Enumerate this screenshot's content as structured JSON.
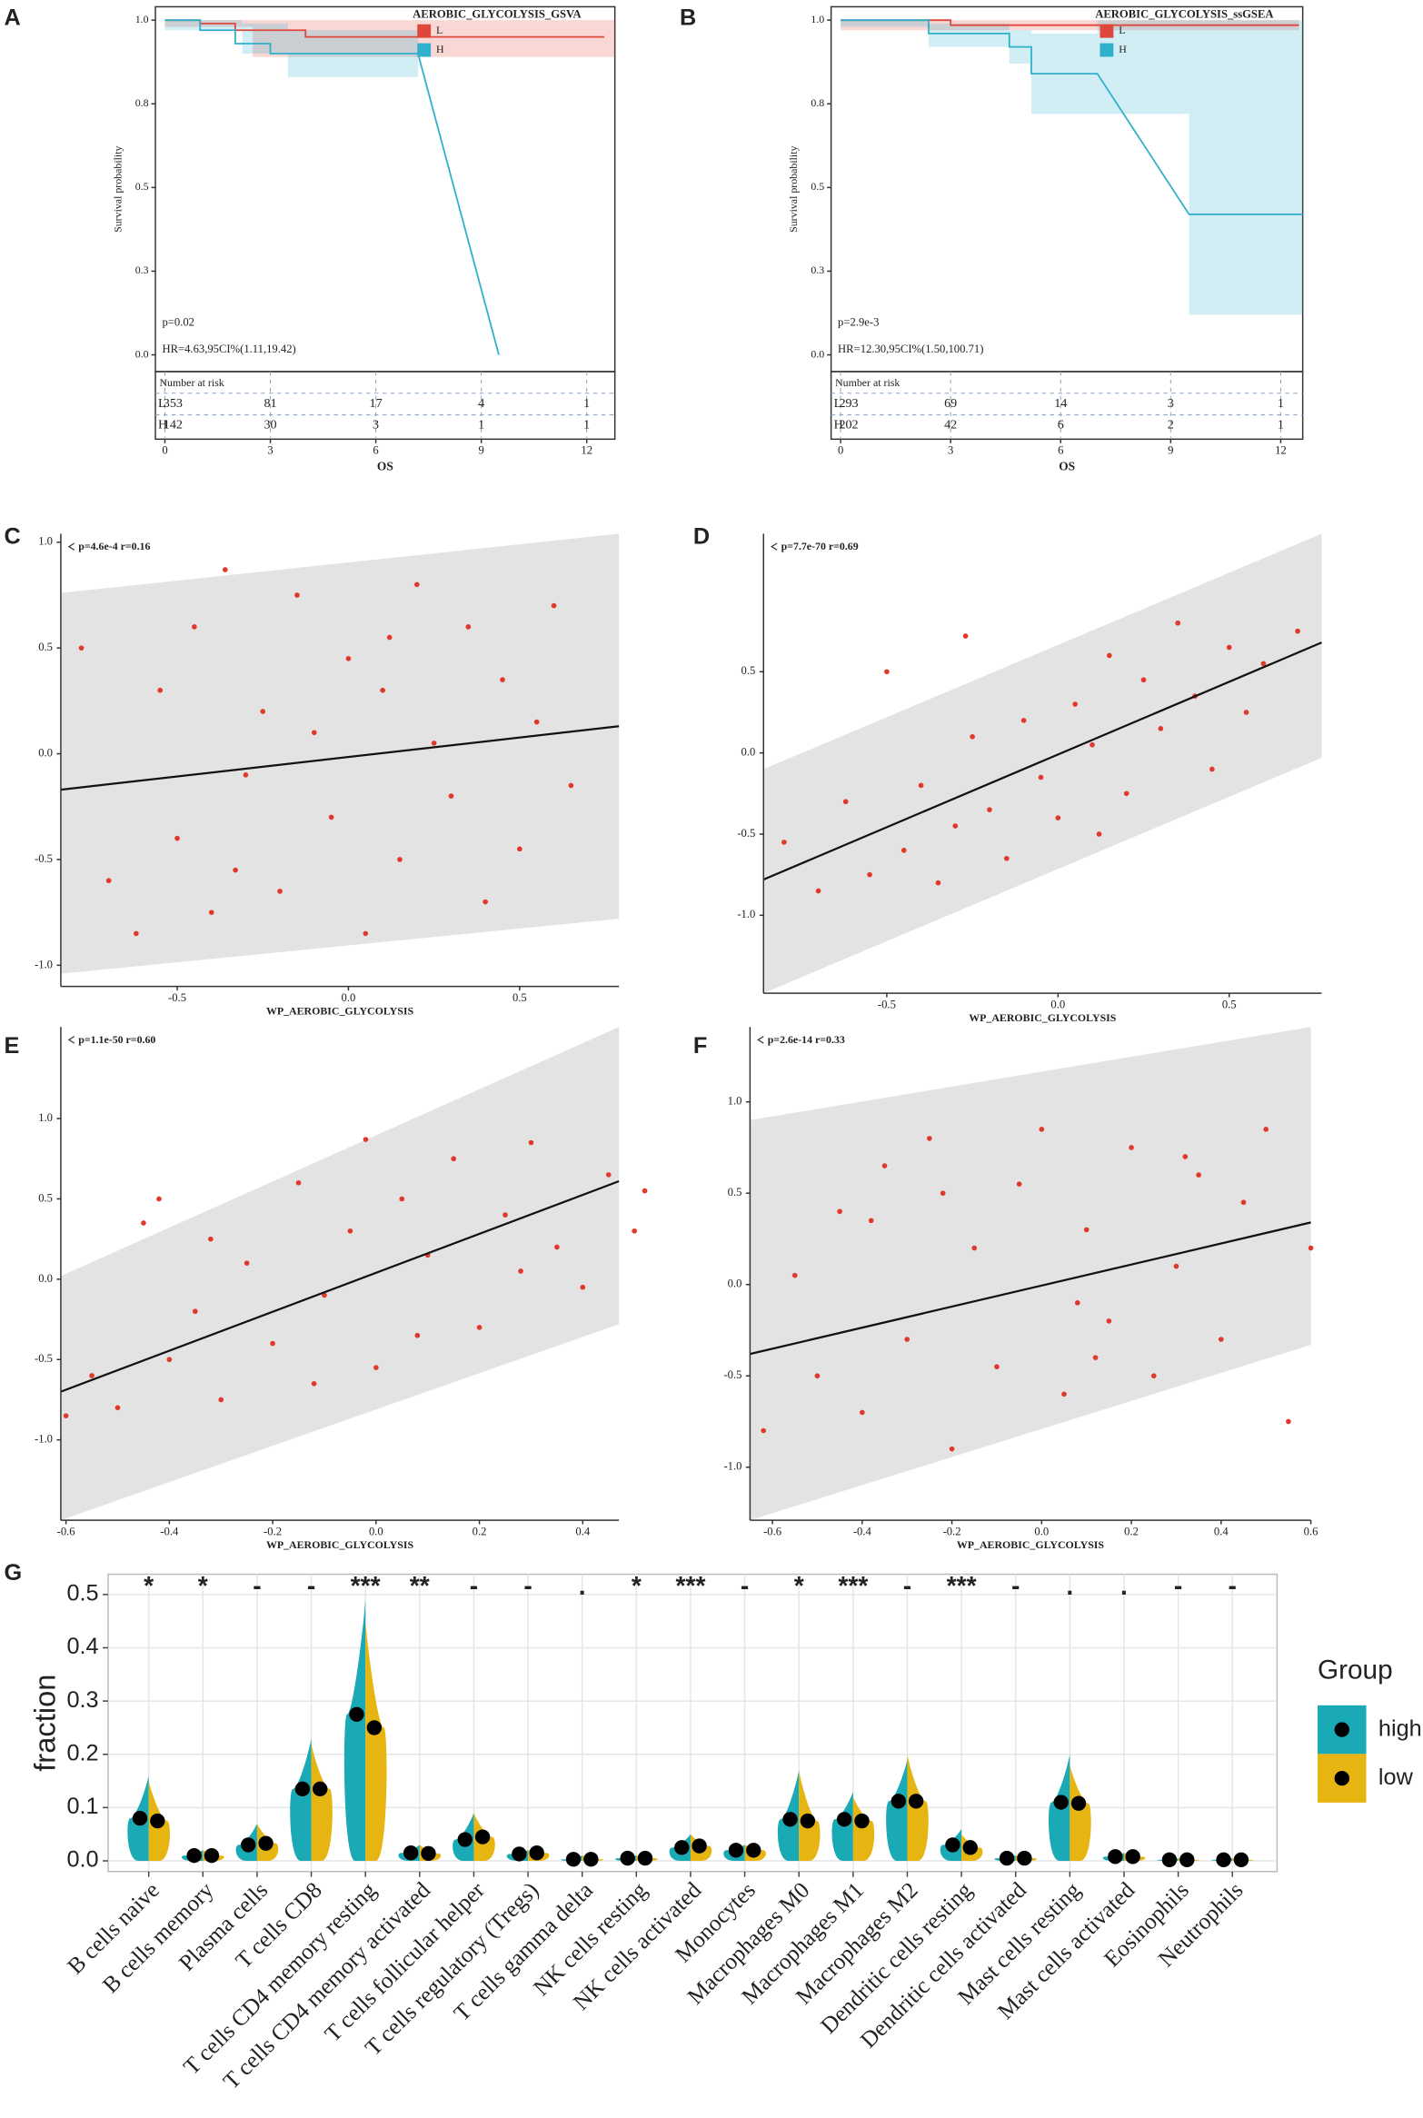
{
  "chart_data": [
    {
      "type": "survival",
      "label": "A",
      "title": "AEROBIC_GLYCOLYSIS_GSVA",
      "x_label": "OS",
      "y_label": "Survival probability",
      "annotations": [
        "p=0.02",
        "HR=4.63,95CI%(1.11,19.42)"
      ],
      "xlim": [
        -0.27,
        12.8
      ],
      "ylim": [
        -0.05,
        1.04
      ],
      "xticks": [
        0,
        3,
        6,
        9,
        12
      ],
      "yticks": [
        {
          "value": 0,
          "label": "0.0"
        },
        {
          "value": 0.25,
          "label": "0.3"
        },
        0.5,
        {
          "value": 0.75,
          "label": "0.8"
        },
        {
          "value": 1,
          "label": "1.0"
        }
      ],
      "risk_title": "Number at risk",
      "series": [
        {
          "name": "L",
          "color": "#e0473b",
          "x": [
            0,
            1,
            1,
            2,
            2,
            4,
            4,
            12.5
          ],
          "values": [
            1,
            1,
            0.99,
            0.99,
            0.97,
            0.97,
            0.95,
            0.95
          ],
          "ci_x": [
            0,
            2.5,
            12.8
          ],
          "ci_lower": [
            0.98,
            0.89
          ],
          "ci_upper": [
            1,
            1
          ],
          "at_risk": [
            353,
            81,
            17,
            4,
            1
          ]
        },
        {
          "name": "H",
          "color": "#2fb0cc",
          "x": [
            0,
            1,
            1,
            2,
            2,
            3,
            3,
            7.2,
            9.5
          ],
          "values": [
            1,
            1,
            0.97,
            0.97,
            0.93,
            0.93,
            0.9,
            0.9,
            0
          ],
          "ci_x": [
            0,
            2.2,
            3.5,
            7.2
          ],
          "ci_lower": [
            0.97,
            0.9,
            0.83
          ],
          "ci_upper": [
            1,
            0.99,
            0.97
          ],
          "at_risk": [
            142,
            30,
            3,
            1,
            1
          ]
        }
      ]
    },
    {
      "type": "survival",
      "label": "B",
      "title": "AEROBIC_GLYCOLYSIS_ssGSEA",
      "x_label": "OS",
      "y_label": "Survival probability",
      "annotations": [
        "p=2.9e-3",
        "HR=12.30,95CI%(1.50,100.71)"
      ],
      "xlim": [
        -0.26,
        12.6
      ],
      "ylim": [
        -0.05,
        1.04
      ],
      "xticks": [
        0,
        3,
        6,
        9,
        12
      ],
      "yticks": [
        {
          "value": 0,
          "label": "0.0"
        },
        {
          "value": 0.25,
          "label": "0.3"
        },
        0.5,
        {
          "value": 0.75,
          "label": "0.8"
        },
        {
          "value": 1,
          "label": "1.0"
        }
      ],
      "risk_title": "Number at risk",
      "series": [
        {
          "name": "L",
          "color": "#e0473b",
          "x": [
            0,
            3,
            3,
            12.5
          ],
          "values": [
            1,
            1,
            0.985,
            0.985
          ],
          "ci_x": [
            0,
            12.5
          ],
          "ci_lower": [
            0.97
          ],
          "ci_upper": [
            1
          ],
          "at_risk": [
            293,
            69,
            14,
            3,
            1
          ]
        },
        {
          "name": "H",
          "color": "#2fb0cc",
          "x": [
            0,
            2.4,
            2.4,
            4.6,
            4.6,
            5.2,
            5.2,
            7,
            9.5,
            12.6
          ],
          "values": [
            1,
            1,
            0.96,
            0.96,
            0.92,
            0.92,
            0.84,
            0.84,
            0.42,
            0.42
          ],
          "ci_x": [
            0,
            2.4,
            4.6,
            5.2,
            7,
            9.5,
            12.6
          ],
          "ci_lower": [
            0.98,
            0.92,
            0.87,
            0.72,
            0.72,
            0.12
          ],
          "ci_upper": [
            1,
            0.99,
            0.97,
            0.96,
            1,
            1
          ],
          "at_risk": [
            202,
            42,
            6,
            2,
            1
          ]
        }
      ]
    },
    {
      "type": "scatter",
      "label": "C",
      "annotation": "p=4.6e-4 r=0.16",
      "x_label": "WP_AEROBIC_GLYCOLYSIS",
      "color": "#e0392b",
      "xlim": [
        -0.84,
        0.79
      ],
      "ylim": [
        -1.1,
        1.04
      ],
      "xticks": [
        -0.5,
        {
          "value": 0,
          "label": "0.0"
        },
        0.5
      ],
      "yticks": [
        {
          "value": -1,
          "label": "-1.0"
        },
        -0.5,
        {
          "value": 0,
          "label": "0.0"
        },
        0.5,
        {
          "value": 1,
          "label": "1.0"
        }
      ],
      "fit": {
        "x": [
          -0.84,
          0.79
        ],
        "values": [
          -0.17,
          0.13
        ],
        "band_lower": [
          -1.04,
          -0.78
        ],
        "band_upper": [
          0.76,
          1.04
        ]
      },
      "x": [
        -0.78,
        -0.7,
        -0.62,
        -0.55,
        -0.5,
        -0.45,
        -0.4,
        -0.36,
        -0.3,
        -0.25,
        -0.2,
        -0.15,
        -0.1,
        -0.05,
        0,
        0.05,
        0.1,
        0.15,
        0.2,
        0.25,
        0.3,
        0.35,
        0.4,
        0.45,
        0.5,
        0.55,
        0.6,
        0.65,
        -0.33,
        0.12
      ],
      "values": [
        0.5,
        -0.6,
        -0.85,
        0.3,
        -0.4,
        0.6,
        -0.75,
        0.87,
        -0.1,
        0.2,
        -0.65,
        0.75,
        0.1,
        -0.3,
        0.45,
        -0.85,
        0.3,
        -0.5,
        0.8,
        0.05,
        -0.2,
        0.6,
        -0.7,
        0.35,
        -0.45,
        0.15,
        0.7,
        -0.15,
        -0.55,
        0.55
      ]
    },
    {
      "type": "scatter",
      "label": "D",
      "annotation": "p=7.7e-70 r=0.69",
      "x_label": "WP_AEROBIC_GLYCOLYSIS",
      "color": "#e0392b",
      "xlim": [
        -0.86,
        0.77
      ],
      "ylim": [
        -1.48,
        1.35
      ],
      "xticks": [
        -0.5,
        {
          "value": 0,
          "label": "0.0"
        },
        0.5
      ],
      "yticks": [
        {
          "value": -1,
          "label": "-1.0"
        },
        -0.5,
        {
          "value": 0,
          "label": "0.0"
        },
        0.5
      ],
      "fit": {
        "x": [
          -0.86,
          0.77
        ],
        "values": [
          -0.78,
          0.68
        ],
        "band_lower": [
          -1.48,
          -0.03
        ],
        "band_upper": [
          -0.1,
          1.35
        ]
      },
      "x": [
        -0.8,
        -0.7,
        -0.62,
        -0.55,
        -0.5,
        -0.45,
        -0.4,
        -0.35,
        -0.3,
        -0.25,
        -0.2,
        -0.15,
        -0.1,
        -0.05,
        0,
        0.05,
        0.1,
        0.15,
        0.2,
        0.25,
        0.3,
        0.35,
        0.4,
        0.45,
        0.5,
        0.55,
        0.6,
        0.7,
        -0.27,
        0.12
      ],
      "values": [
        -0.55,
        -0.85,
        -0.3,
        -0.75,
        0.5,
        -0.6,
        -0.2,
        -0.8,
        -0.45,
        0.1,
        -0.35,
        -0.65,
        0.2,
        -0.15,
        -0.4,
        0.3,
        0.05,
        0.6,
        -0.25,
        0.45,
        0.15,
        0.8,
        0.35,
        -0.1,
        0.65,
        0.25,
        0.55,
        0.75,
        0.72,
        -0.5
      ]
    },
    {
      "type": "scatter",
      "label": "E",
      "annotation": "p=1.1e-50 r=0.60",
      "x_label": "WP_AEROBIC_GLYCOLYSIS",
      "color": "#e0392b",
      "xlim": [
        -0.61,
        0.47
      ],
      "ylim": [
        -1.5,
        1.57
      ],
      "xticks": [
        -0.6,
        -0.4,
        -0.2,
        {
          "value": 0,
          "label": "0.0"
        },
        0.2,
        0.4
      ],
      "yticks": [
        {
          "value": -1,
          "label": "-1.0"
        },
        -0.5,
        {
          "value": 0,
          "label": "0.0"
        },
        0.5,
        {
          "value": 1,
          "label": "1.0"
        }
      ],
      "fit": {
        "x": [
          -0.61,
          0.47
        ],
        "values": [
          -0.7,
          0.61
        ],
        "band_lower": [
          -1.5,
          -0.28
        ],
        "band_upper": [
          0.02,
          1.57
        ]
      },
      "x": [
        -0.6,
        -0.55,
        -0.5,
        -0.45,
        -0.4,
        -0.35,
        -0.3,
        -0.25,
        -0.2,
        -0.15,
        -0.1,
        -0.05,
        0,
        0.05,
        0.1,
        0.15,
        0.2,
        0.25,
        0.3,
        0.35,
        0.4,
        0.45,
        0.5,
        0.52,
        -0.42,
        -0.02,
        -0.12,
        0.08,
        0.28,
        -0.32
      ],
      "values": [
        -0.85,
        -0.6,
        -0.8,
        0.35,
        -0.5,
        -0.2,
        -0.75,
        0.1,
        -0.4,
        0.6,
        -0.1,
        0.3,
        -0.55,
        0.5,
        0.15,
        0.75,
        -0.3,
        0.4,
        0.85,
        0.2,
        -0.05,
        0.65,
        0.3,
        0.55,
        0.5,
        0.87,
        -0.65,
        -0.35,
        0.05,
        0.25
      ]
    },
    {
      "type": "scatter",
      "label": "F",
      "annotation": "p=2.6e-14 r=0.33",
      "x_label": "WP_AEROBIC_GLYCOLYSIS",
      "color": "#e0392b",
      "xlim": [
        -0.65,
        0.6
      ],
      "ylim": [
        -1.29,
        1.41
      ],
      "xticks": [
        -0.6,
        -0.4,
        -0.2,
        {
          "value": 0,
          "label": "0.0"
        },
        0.2,
        0.4,
        0.6
      ],
      "yticks": [
        {
          "value": -1,
          "label": "-1.0"
        },
        -0.5,
        {
          "value": 0,
          "label": "0.0"
        },
        0.5,
        {
          "value": 1,
          "label": "1.0"
        }
      ],
      "fit": {
        "x": [
          -0.65,
          0.6
        ],
        "values": [
          -0.38,
          0.34
        ],
        "band_lower": [
          -1.29,
          -0.33
        ],
        "band_upper": [
          0.9,
          1.41
        ]
      },
      "x": [
        -0.62,
        -0.55,
        -0.5,
        -0.45,
        -0.4,
        -0.35,
        -0.3,
        -0.25,
        -0.2,
        -0.15,
        -0.1,
        -0.05,
        0,
        0.05,
        0.1,
        0.15,
        0.2,
        0.25,
        0.3,
        0.35,
        0.4,
        0.45,
        0.5,
        0.55,
        0.6,
        -0.22,
        0.08,
        -0.38,
        0.32,
        0.12
      ],
      "values": [
        -0.8,
        0.05,
        -0.5,
        0.4,
        -0.7,
        0.65,
        -0.3,
        0.8,
        -0.9,
        0.2,
        -0.45,
        0.55,
        0.85,
        -0.6,
        0.3,
        -0.2,
        0.75,
        -0.5,
        0.1,
        0.6,
        -0.3,
        0.45,
        0.85,
        -0.75,
        0.2,
        0.5,
        -0.1,
        0.35,
        0.7,
        -0.4
      ]
    },
    {
      "type": "violin",
      "label": "G",
      "y_label": "fraction",
      "legend_title": "Group",
      "ylim": [
        -0.02,
        0.538
      ],
      "yticks": [
        {
          "value": 0,
          "label": "0.0"
        },
        0.1,
        0.2,
        0.3,
        0.4,
        0.5
      ],
      "categories": [
        "B cells naive",
        "B cells memory",
        "Plasma cells",
        "T cells CD8",
        "T cells CD4 memory resting",
        "T cells CD4 memory activated",
        "T cells follicular helper",
        "T cells regulatory (Tregs)",
        "T cells gamma delta",
        "NK cells resting",
        "NK cells activated",
        "Monocytes",
        "Macrophages M0",
        "Macrophages M1",
        "Macrophages M2",
        "Dendritic cells resting",
        "Dendritic cells activated",
        "Mast cells resting",
        "Mast cells activated",
        "Eosinophils",
        "Neutrophils"
      ],
      "significance": [
        "*",
        "*",
        "-",
        "-",
        "***",
        "**",
        "-",
        "-",
        ".",
        "*",
        "***",
        "-",
        "*",
        "***",
        "-",
        "***",
        "-",
        ".",
        ".",
        "-",
        "-"
      ],
      "series": [
        {
          "name": "high",
          "color": "#1aaab5",
          "values": [
            0.08,
            0.01,
            0.03,
            0.135,
            0.275,
            0.015,
            0.04,
            0.013,
            0.003,
            0.005,
            0.025,
            0.02,
            0.078,
            0.078,
            0.112,
            0.03,
            0.005,
            0.11,
            0.008,
            0.002,
            0.002
          ],
          "max": [
            0.16,
            0.02,
            0.07,
            0.23,
            0.49,
            0.03,
            0.09,
            0.02,
            0.01,
            0.01,
            0.05,
            0.03,
            0.17,
            0.13,
            0.19,
            0.06,
            0.01,
            0.2,
            0.015,
            0.005,
            0.005
          ]
        },
        {
          "name": "low",
          "color": "#e6b512",
          "values": [
            0.075,
            0.01,
            0.033,
            0.135,
            0.25,
            0.014,
            0.045,
            0.015,
            0.003,
            0.005,
            0.028,
            0.02,
            0.075,
            0.075,
            0.112,
            0.025,
            0.005,
            0.108,
            0.008,
            0.002,
            0.002
          ],
          "max": [
            0.15,
            0.02,
            0.07,
            0.22,
            0.45,
            0.03,
            0.09,
            0.02,
            0.01,
            0.01,
            0.05,
            0.03,
            0.17,
            0.12,
            0.2,
            0.05,
            0.01,
            0.18,
            0.015,
            0.005,
            0.005
          ]
        }
      ]
    }
  ]
}
